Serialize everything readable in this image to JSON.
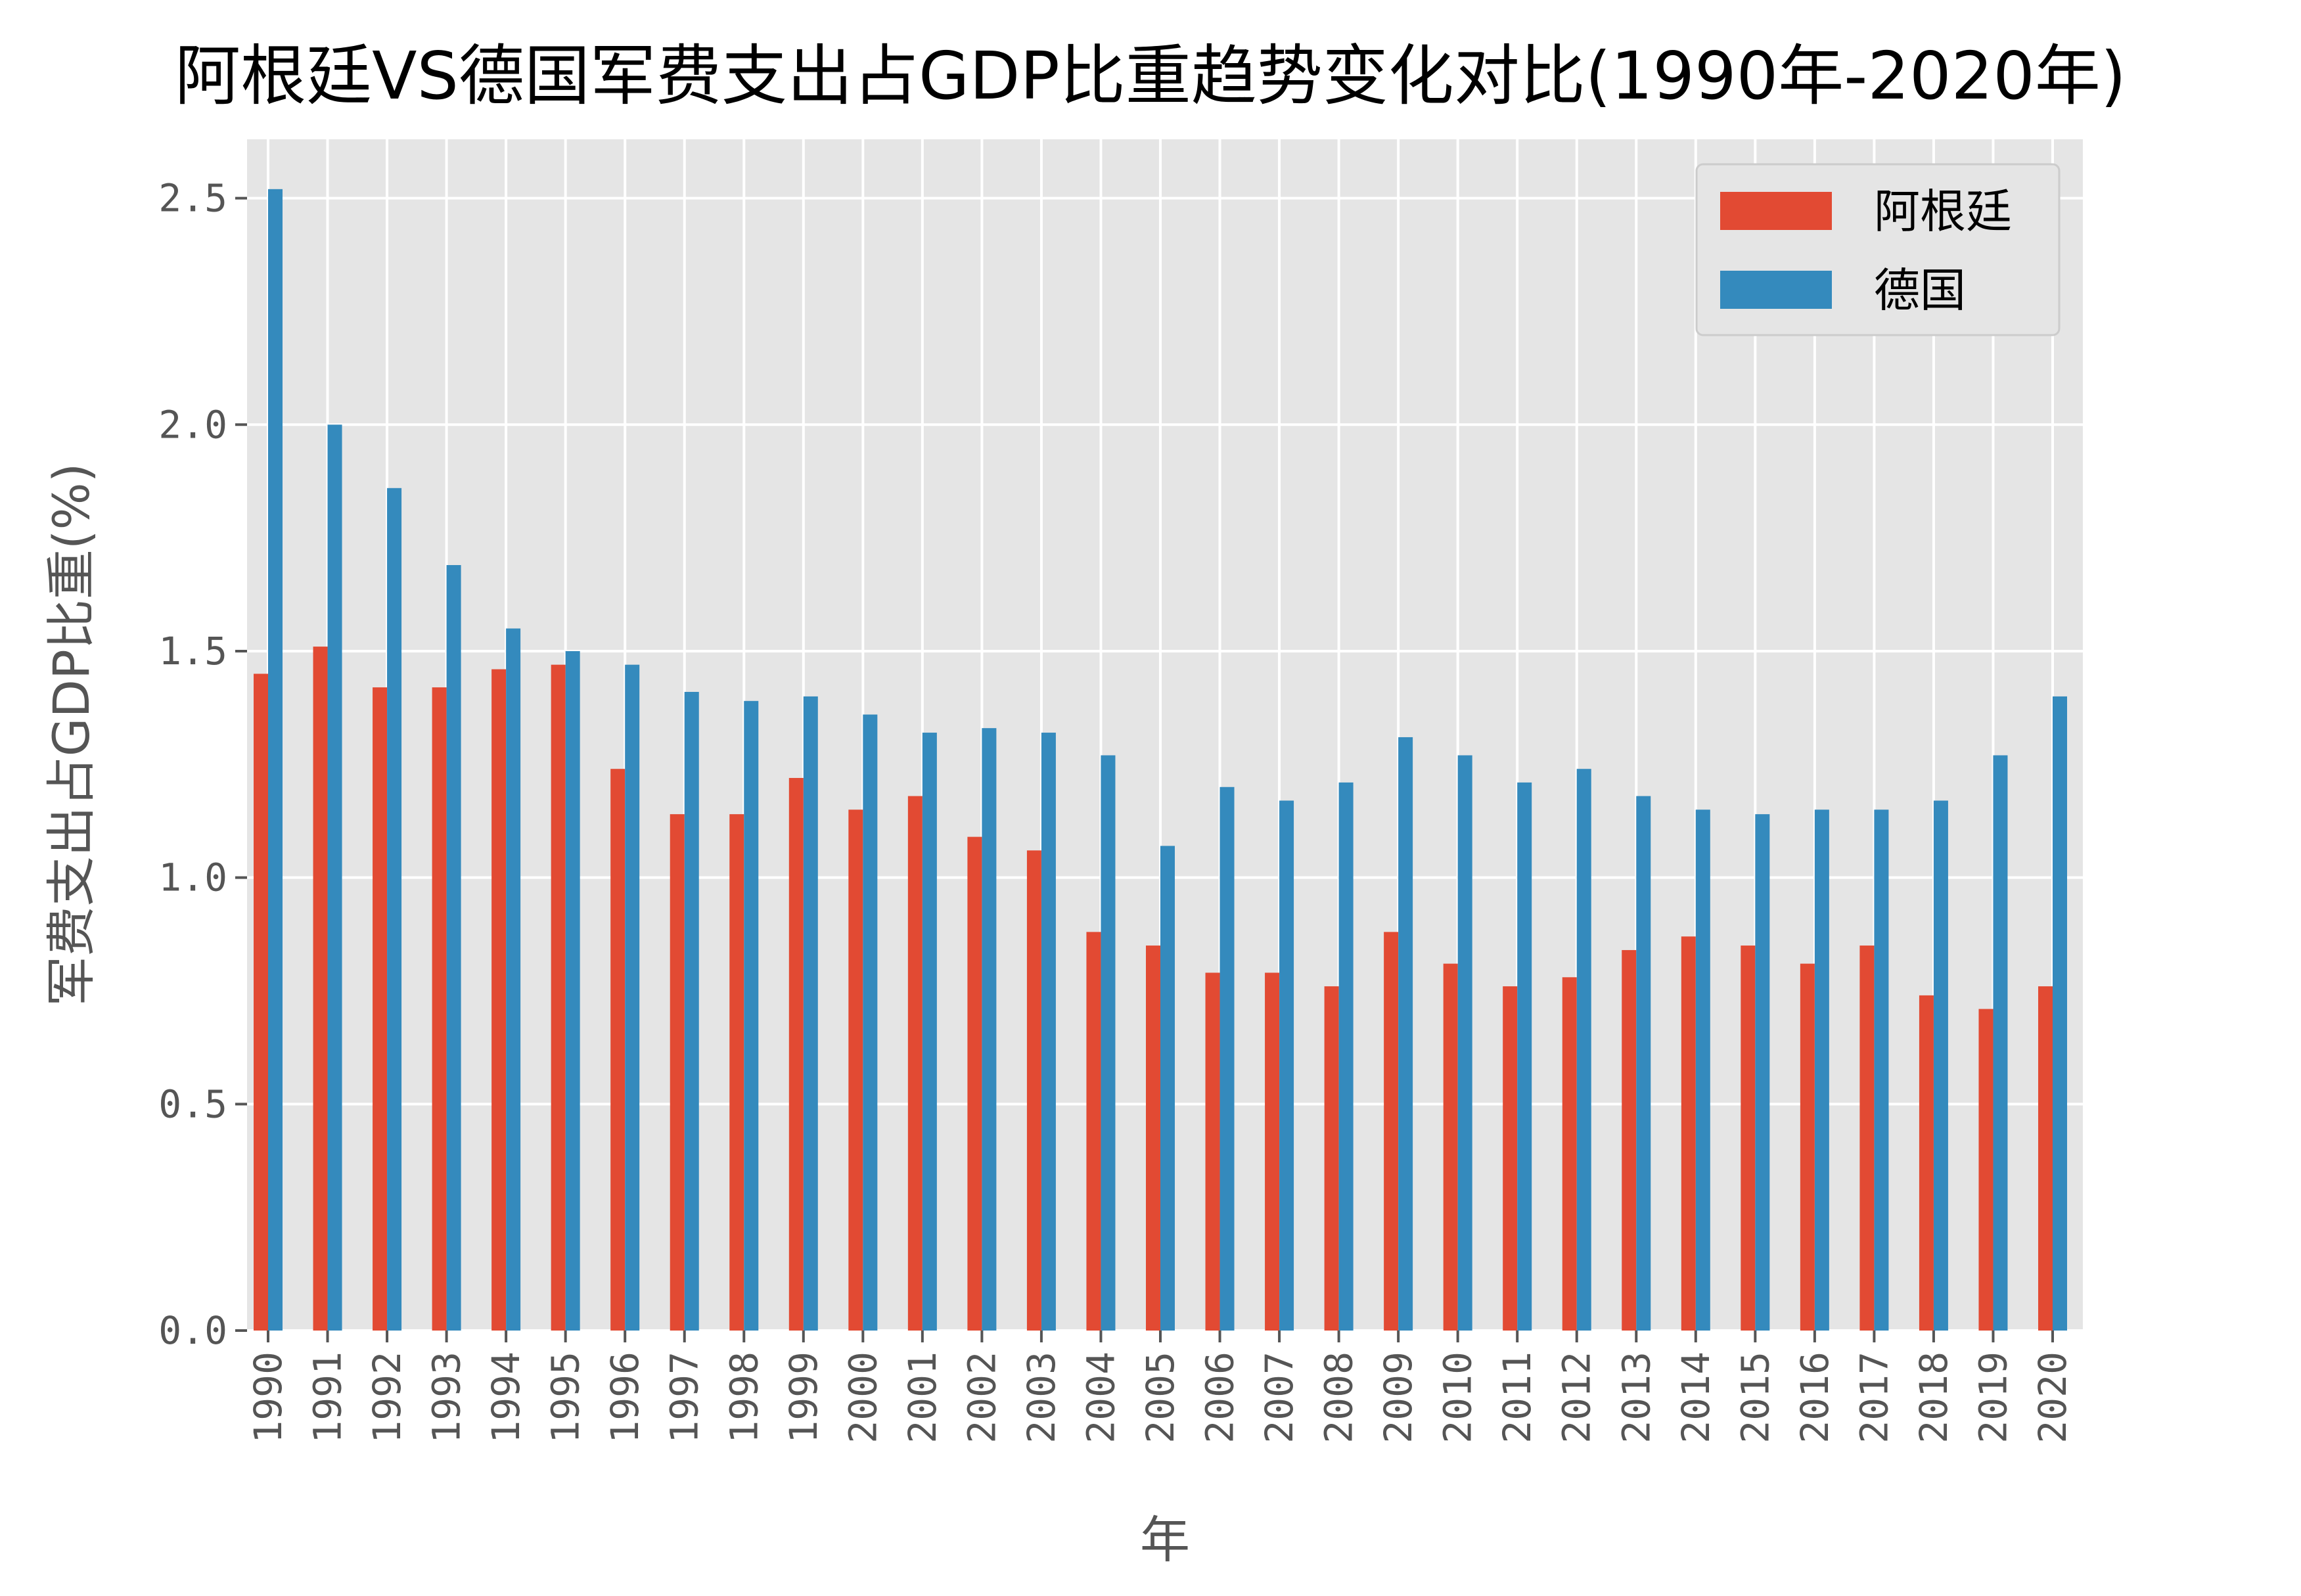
{
  "chart_data": {
    "type": "bar",
    "title": "阿根廷VS德国军费支出占GDP比重趋势变化对比(1990年-2020年)",
    "xlabel": "年",
    "ylabel": "军费支出占GDP比重(%)",
    "ylim": [
      0,
      2.63
    ],
    "yticks": [
      "0.0",
      "0.5",
      "1.0",
      "1.5",
      "2.0",
      "2.5"
    ],
    "ytick_values": [
      0,
      0.5,
      1.0,
      1.5,
      2.0,
      2.5
    ],
    "grid": true,
    "legend_position": "top-right",
    "categories": [
      "1990",
      "1991",
      "1992",
      "1993",
      "1994",
      "1995",
      "1996",
      "1997",
      "1998",
      "1999",
      "2000",
      "2001",
      "2002",
      "2003",
      "2004",
      "2005",
      "2006",
      "2007",
      "2008",
      "2009",
      "2010",
      "2011",
      "2012",
      "2013",
      "2014",
      "2015",
      "2016",
      "2017",
      "2018",
      "2019",
      "2020"
    ],
    "series": [
      {
        "name": "阿根廷",
        "color": "#E24A33",
        "values": [
          1.45,
          1.51,
          1.42,
          1.42,
          1.46,
          1.47,
          1.24,
          1.14,
          1.14,
          1.22,
          1.15,
          1.18,
          1.09,
          1.06,
          0.88,
          0.85,
          0.79,
          0.79,
          0.76,
          0.88,
          0.81,
          0.76,
          0.78,
          0.84,
          0.87,
          0.85,
          0.81,
          0.85,
          0.74,
          0.71,
          0.76
        ]
      },
      {
        "name": "德国",
        "color": "#348ABD",
        "values": [
          2.52,
          2.0,
          1.86,
          1.69,
          1.55,
          1.5,
          1.47,
          1.41,
          1.39,
          1.4,
          1.36,
          1.32,
          1.33,
          1.32,
          1.27,
          1.07,
          1.2,
          1.17,
          1.21,
          1.31,
          1.27,
          1.21,
          1.24,
          1.18,
          1.15,
          1.14,
          1.15,
          1.15,
          1.17,
          1.27,
          1.4
        ]
      }
    ]
  }
}
